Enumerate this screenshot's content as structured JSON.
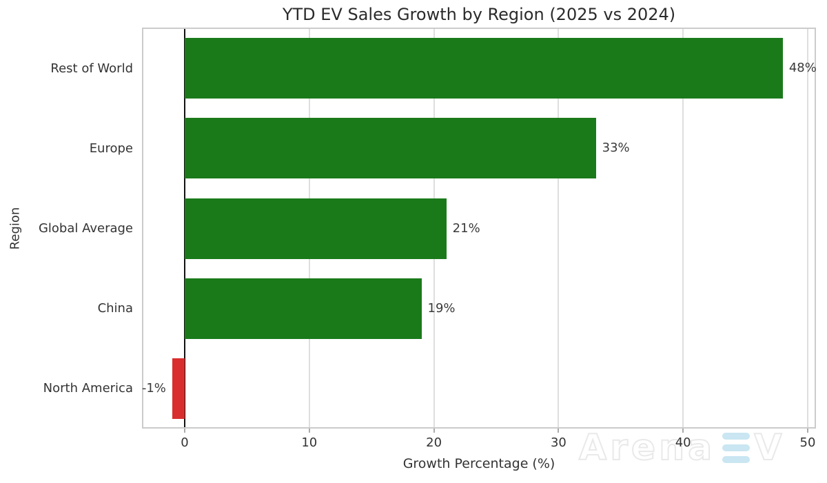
{
  "title": "YTD EV Sales Growth by Region (2025 vs 2024)",
  "watermark": {
    "full_text": "ArenaEV",
    "part_arena": "Arena",
    "part_v": "V",
    "e_bar_color": "#c9e6f2",
    "outline_color": "#e9e9e9"
  },
  "chart_data": {
    "type": "bar",
    "orientation": "horizontal",
    "title": "YTD EV Sales Growth by Region (2025 vs 2024)",
    "xlabel": "Growth Percentage (%)",
    "ylabel": "Region",
    "categories": [
      "Rest of World",
      "Europe",
      "Global Average",
      "China",
      "North America"
    ],
    "values": [
      48,
      33,
      21,
      19,
      -1
    ],
    "bar_labels": [
      "48%",
      "33%",
      "21%",
      "19%",
      "-1%"
    ],
    "xticks": [
      0,
      10,
      20,
      30,
      40,
      50
    ],
    "xlim": [
      -3.4,
      50.6
    ],
    "grid": true,
    "legend": false,
    "positive_color": "#1a7a1a",
    "negative_color": "#d92e2e",
    "gridline_color": "#dedede",
    "zero_line_color": "#111111",
    "text_color": "#333333"
  }
}
